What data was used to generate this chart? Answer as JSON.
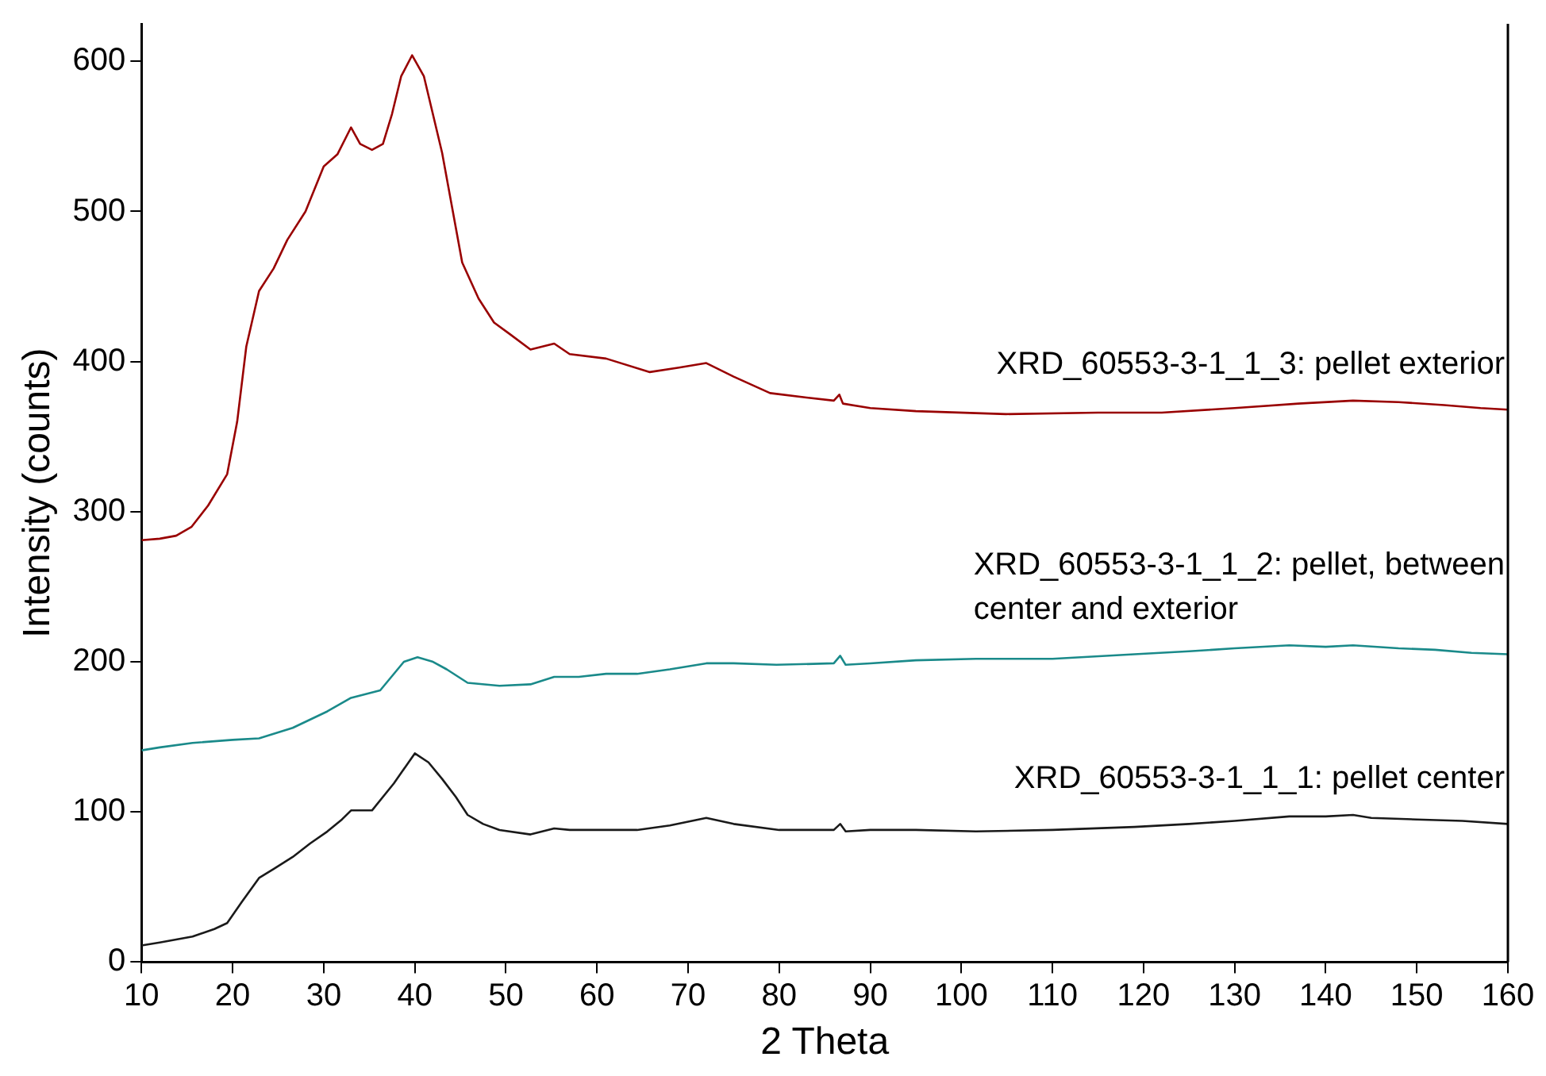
{
  "chart_data": {
    "type": "line",
    "xlabel": "2 Theta",
    "ylabel": "Intensity (counts)",
    "xlim": [
      10,
      160
    ],
    "xticks": [
      10,
      20,
      30,
      40,
      50,
      60,
      70,
      80,
      90,
      100,
      110,
      120,
      130,
      140,
      150,
      160
    ],
    "ylim": [
      0,
      625
    ],
    "yticks": [
      0,
      100,
      200,
      300,
      400,
      500,
      600
    ],
    "grid": false,
    "legend": false,
    "marker": "none",
    "line_style": "solid",
    "series": [
      {
        "name": "XRD_60553-3-1_1_1: pellet center",
        "color": "#1a1a1a",
        "x": [
          10,
          12,
          15.6,
          18,
          19.4,
          21,
          22.9,
          24.5,
          26.6,
          28.5,
          30.4,
          32,
          33,
          35.3,
          37.7,
          40,
          41.5,
          43,
          44.5,
          45.8,
          47.5,
          49.3,
          52.7,
          54,
          55.3,
          57,
          60,
          64.4,
          68,
          72,
          75,
          80,
          86,
          86.7,
          87.3,
          90,
          95,
          101.6,
          110,
          119,
          125,
          130,
          136,
          140,
          143,
          145,
          150,
          155,
          160
        ],
        "values": [
          11,
          13,
          17,
          22,
          26,
          40,
          56,
          62,
          70,
          79,
          87,
          95,
          101,
          101,
          119,
          139,
          133,
          122,
          110,
          98,
          92,
          88,
          85,
          87,
          89,
          88,
          88,
          88,
          91,
          96,
          92,
          88,
          88,
          92,
          87,
          88,
          88,
          87,
          88,
          90,
          92,
          94,
          97,
          97,
          98,
          96,
          95,
          94,
          92
        ]
      },
      {
        "name": "XRD_60553-3-1_1_2: pellet, between center and exterior",
        "color": "#1a8a8a",
        "x": [
          10,
          12,
          15.6,
          20,
          22.9,
          26.6,
          30.4,
          33,
          36.2,
          38.8,
          40.3,
          42,
          43.5,
          45.8,
          49.3,
          52.7,
          55.3,
          58,
          61,
          64.4,
          68,
          72,
          75,
          79.7,
          86,
          86.7,
          87.3,
          90,
          95,
          101.6,
          110,
          119,
          125,
          130,
          136,
          140,
          143,
          148,
          152,
          156,
          160
        ],
        "values": [
          141,
          143,
          146,
          148,
          149,
          156,
          167,
          176,
          181,
          200,
          203,
          200,
          195,
          186,
          184,
          185,
          190,
          190,
          192,
          192,
          195,
          199,
          199,
          198,
          199,
          204,
          198,
          199,
          201,
          202,
          202,
          205,
          207,
          209,
          211,
          210,
          211,
          209,
          208,
          206,
          205
        ]
      },
      {
        "name": "XRD_60553-3-1_1_3: pellet exterior",
        "color": "#990000",
        "x": [
          10,
          12,
          13.8,
          15.5,
          17.3,
          19.4,
          20.5,
          21.5,
          22.9,
          24.5,
          26,
          28,
          30,
          31.5,
          33,
          34,
          35.3,
          36.5,
          37.5,
          38.5,
          39.7,
          41,
          43,
          45.2,
          47,
          48.7,
          50.5,
          52.7,
          54,
          55.3,
          57,
          61,
          65.8,
          69,
          72,
          75,
          79,
          83,
          86,
          86.6,
          87,
          90,
          95,
          104.9,
          115,
          122,
          130,
          137,
          143,
          148,
          153,
          157,
          160
        ],
        "values": [
          281,
          282,
          284,
          290,
          304,
          325,
          360,
          410,
          447,
          462,
          481,
          500,
          530,
          538,
          556,
          545,
          541,
          545,
          565,
          590,
          604,
          590,
          539,
          466,
          442,
          426,
          418,
          408,
          410,
          412,
          405,
          402,
          393,
          396,
          399,
          390,
          379,
          376,
          374,
          378,
          372,
          369,
          367,
          365,
          366,
          366,
          369,
          372,
          374,
          373,
          371,
          369,
          368
        ]
      }
    ]
  }
}
